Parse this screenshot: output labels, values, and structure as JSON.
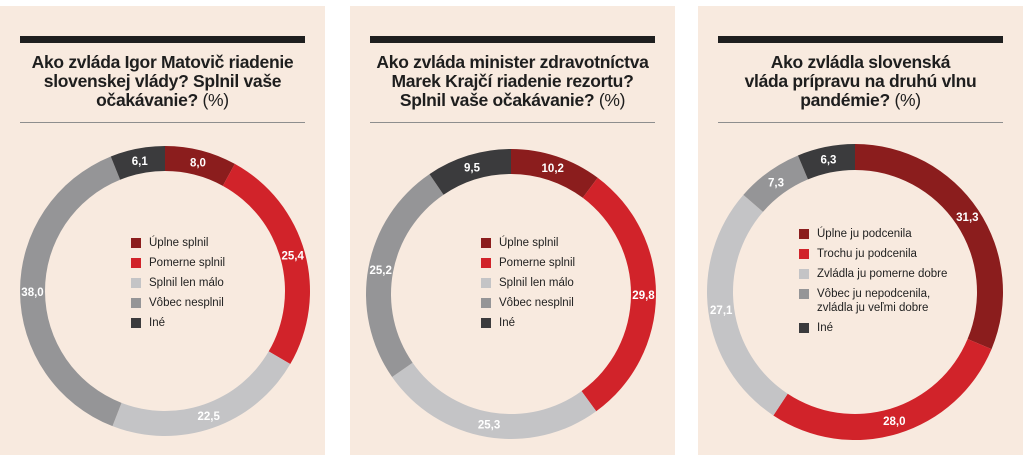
{
  "chart_data": [
    {
      "type": "pie",
      "title_lines": [
        "Ako zvláda Igor Matovič riadenie",
        "slovenskej vlády? Splnil vaše",
        "očakávanie?"
      ],
      "unit": "(%)",
      "series": [
        {
          "name": "Úplne splnil",
          "value": 8.0,
          "label": "8,0",
          "color": "#8b1d1d"
        },
        {
          "name": "Pomerne splnil",
          "value": 25.4,
          "label": "25,4",
          "color": "#d1232a"
        },
        {
          "name": "Splnil len málo",
          "value": 22.5,
          "label": "22,5",
          "color": "#c4c4c6"
        },
        {
          "name": "Vôbec nesplnil",
          "value": 38.0,
          "label": "38,0",
          "color": "#959597"
        },
        {
          "name": "Iné",
          "value": 6.1,
          "label": "6,1",
          "color": "#3b3b3d"
        }
      ]
    },
    {
      "type": "pie",
      "title_lines": [
        "Ako zvláda minister zdravotníctva",
        "Marek Krajčí riadenie rezortu?",
        "Splnil vaše očakávanie?"
      ],
      "unit": "(%)",
      "series": [
        {
          "name": "Úplne splnil",
          "value": 10.2,
          "label": "10,2",
          "color": "#8b1d1d"
        },
        {
          "name": "Pomerne splnil",
          "value": 29.8,
          "label": "29,8",
          "color": "#d1232a"
        },
        {
          "name": "Splnil len málo",
          "value": 25.3,
          "label": "25,3",
          "color": "#c4c4c6"
        },
        {
          "name": "Vôbec nesplnil",
          "value": 25.2,
          "label": "25,2",
          "color": "#959597"
        },
        {
          "name": "Iné",
          "value": 9.5,
          "label": "9,5",
          "color": "#3b3b3d"
        }
      ]
    },
    {
      "type": "pie",
      "title_lines": [
        "Ako zvládla slovenská",
        "vláda prípravu na druhú vlnu",
        "pandémie?"
      ],
      "unit": "(%)",
      "series": [
        {
          "name": "Úplne ju podcenila",
          "value": 31.3,
          "label": "31,3",
          "color": "#8b1d1d"
        },
        {
          "name": "Trochu ju podcenila",
          "value": 28.0,
          "label": "28,0",
          "color": "#d1232a"
        },
        {
          "name": "Zvládla ju pomerne dobre",
          "value": 27.1,
          "label": "27,1",
          "color": "#c4c4c6"
        },
        {
          "name": "Vôbec ju nepodcenila, zvládla ju veľmi dobre",
          "legend_lines": [
            "Vôbec ju nepodcenila,",
            "zvládla ju veľmi dobre"
          ],
          "value": 7.3,
          "label": "7,3",
          "color": "#959597"
        },
        {
          "name": "Iné",
          "value": 6.3,
          "label": "6,3",
          "color": "#3b3b3d"
        }
      ]
    }
  ]
}
